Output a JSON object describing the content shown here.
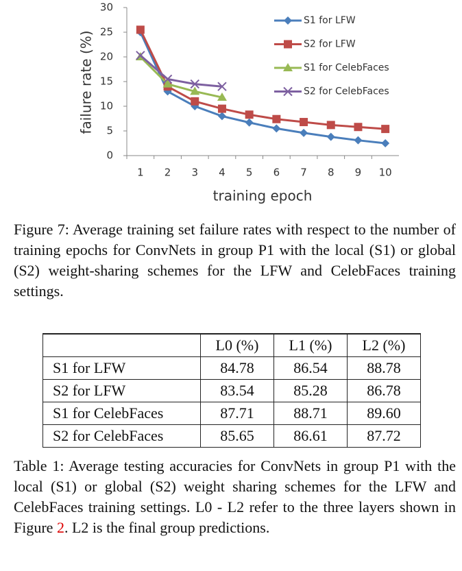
{
  "chart_data": {
    "type": "line",
    "categories": [
      "1",
      "2",
      "3",
      "4",
      "5",
      "6",
      "7",
      "8",
      "9",
      "10"
    ],
    "series": [
      {
        "name": "S1 for LFW",
        "color": "#4a7ebb",
        "marker": "diamond",
        "values": [
          25,
          13,
          10,
          8,
          6.7,
          5.5,
          4.6,
          3.8,
          3.1,
          2.5
        ]
      },
      {
        "name": "S2 for LFW",
        "color": "#be4b48",
        "marker": "square",
        "values": [
          25.5,
          14,
          11,
          9.5,
          8.3,
          7.4,
          6.8,
          6.2,
          5.8,
          5.4
        ]
      },
      {
        "name": "S1 for CelebFaces",
        "color": "#98b954",
        "marker": "triangle",
        "values": [
          20,
          14.5,
          13,
          11.8,
          null,
          null,
          null,
          null,
          null,
          null
        ]
      },
      {
        "name": "S2 for CelebFaces",
        "color": "#7d60a0",
        "marker": "x",
        "values": [
          20.3,
          15.5,
          14.5,
          14,
          null,
          null,
          null,
          null,
          null,
          null
        ]
      }
    ],
    "x_label": "training epoch",
    "y_label": "failure rate (%)",
    "ylim": [
      0,
      30
    ],
    "yticks": [
      0,
      5,
      10,
      15,
      20,
      25,
      30
    ],
    "legend": "upper right"
  },
  "figure_caption": "Figure 7: Average training set failure rates with respect to the number of training epochs for ConvNets in group P1 with the local (S1) or global (S2) weight-sharing schemes for the LFW and CelebFaces training settings.",
  "table": {
    "header": [
      "L0 (%)",
      "L1 (%)",
      "L2 (%)"
    ],
    "rows": [
      [
        "S1 for LFW",
        "84.78",
        "86.54",
        "88.78"
      ],
      [
        "S2 for LFW",
        "83.54",
        "85.28",
        "86.78"
      ],
      [
        "S1 for CelebFaces",
        "87.71",
        "88.71",
        "89.60"
      ],
      [
        "S2 for CelebFaces",
        "85.65",
        "86.61",
        "87.72"
      ]
    ]
  },
  "table_caption": {
    "before": "Table 1: Average testing accuracies for ConvNets in group P1 with the local (S1) or global (S2) weight sharing schemes for the LFW and CelebFaces training settings. L0 - L2 refer to the three layers shown in Figure ",
    "link": "2",
    "after": ". L2 is the final group predictions."
  }
}
